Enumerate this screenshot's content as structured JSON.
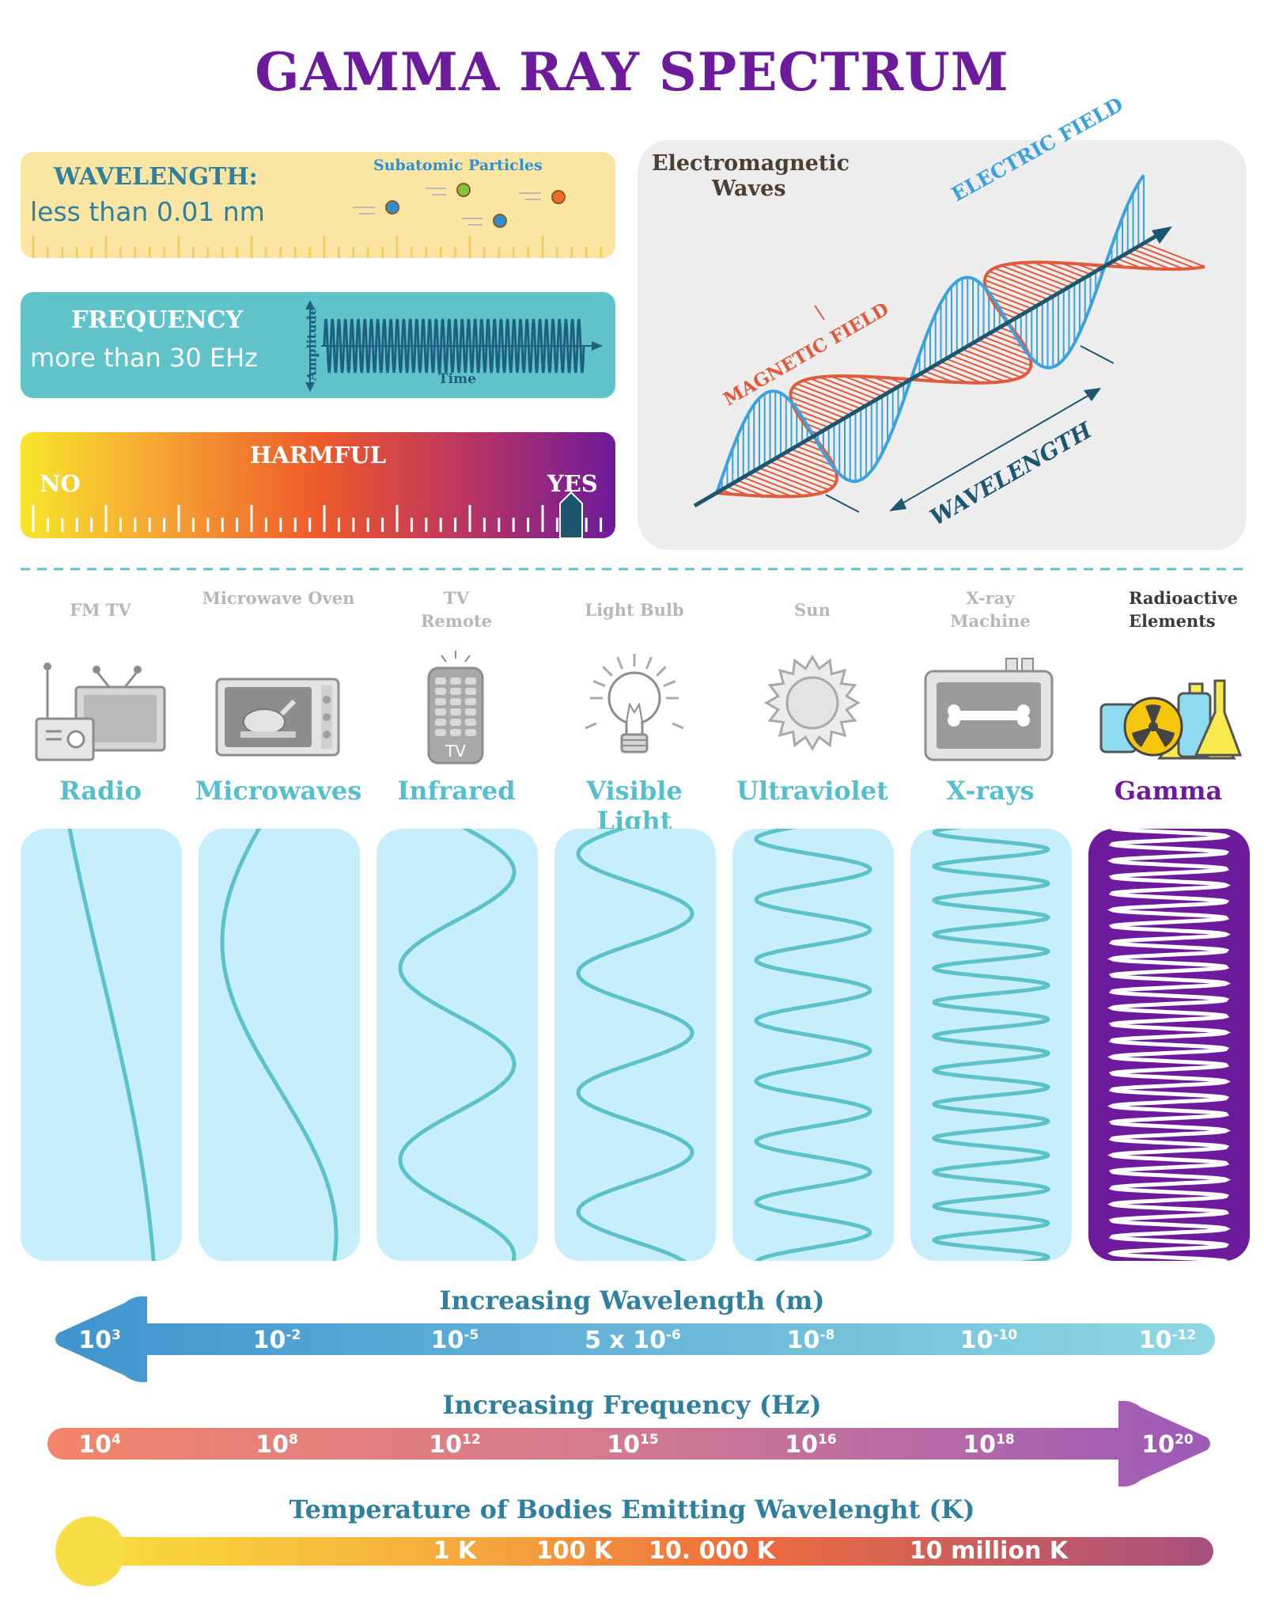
{
  "title": "GAMMA RAY SPECTRUM",
  "wavelength": {
    "label": "WAVELENGTH:",
    "value": "less than 0.01 nm",
    "particles_label": "Subatomic Particles"
  },
  "frequency": {
    "label": "FREQUENCY",
    "value": "more than 30 EHz",
    "axis_y": "Amplitude",
    "axis_x": "Time"
  },
  "harmful": {
    "label": "HARMFUL",
    "no": "NO",
    "yes": "YES"
  },
  "em": {
    "title_line1": "Electromagnetic",
    "title_line2": "Waves",
    "electric": "ELECTRIC FIELD",
    "magnetic": "MAGNETIC FIELD",
    "wavelength": "WAVELENGTH"
  },
  "categories": [
    {
      "source": "FM   TV",
      "name": "Radio"
    },
    {
      "source": "Microwave Oven",
      "name": "Microwaves"
    },
    {
      "source": "TV Remote",
      "name": "Infrared"
    },
    {
      "source": "Light Bulb",
      "name": "Visible Light"
    },
    {
      "source": "Sun",
      "name": "Ultraviolet"
    },
    {
      "source": "X-ray Machine",
      "name": "X-rays"
    },
    {
      "source": "Radioactive Elements",
      "name": "Gamma"
    }
  ],
  "tv_remote_label": "TV",
  "scales": {
    "wavelength": {
      "title": "Increasing Wavelength (m)",
      "ticks": [
        {
          "base": "10",
          "exp": "3"
        },
        {
          "base": "10",
          "exp": "-2"
        },
        {
          "base": "10",
          "exp": "-5"
        },
        {
          "base": "5 x 10",
          "exp": "-6"
        },
        {
          "base": "10",
          "exp": "-8"
        },
        {
          "base": "10",
          "exp": "-10"
        },
        {
          "base": "10",
          "exp": "-12"
        }
      ]
    },
    "frequency": {
      "title": "Increasing Frequency (Hz)",
      "ticks": [
        {
          "base": "10",
          "exp": "4"
        },
        {
          "base": "10",
          "exp": "8"
        },
        {
          "base": "10",
          "exp": "12"
        },
        {
          "base": "10",
          "exp": "15"
        },
        {
          "base": "10",
          "exp": "16"
        },
        {
          "base": "10",
          "exp": "18"
        },
        {
          "base": "10",
          "exp": "20"
        }
      ]
    },
    "temperature": {
      "title": "Temperature of Bodies Emitting Wavelenght (K)",
      "ticks": [
        "1 K",
        "100 K",
        "10. 000 K",
        "10 million K"
      ]
    }
  },
  "colors": {
    "purple": "#6d1b9c",
    "teal": "#55c0cc",
    "wave": "#5cc2c9",
    "panel": "#c7effb"
  }
}
